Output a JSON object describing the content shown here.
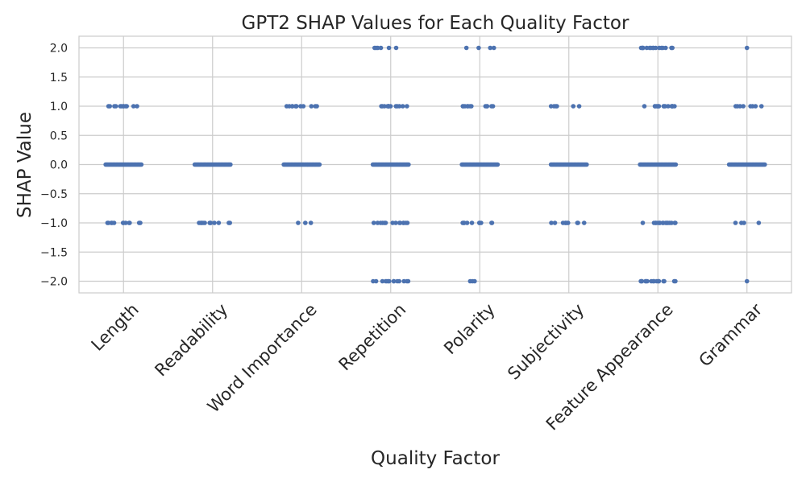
{
  "chart_data": {
    "type": "scatter",
    "title": "GPT2 SHAP Values for Each Quality Factor",
    "xlabel": "Quality Factor",
    "ylabel": "SHAP Value",
    "ylim": [
      -2.2,
      2.2
    ],
    "yticks": [
      2.0,
      1.5,
      1.0,
      0.5,
      0.0,
      -0.5,
      -1.0,
      -1.5,
      -2.0
    ],
    "ytick_labels": [
      "2.0",
      "1.5",
      "1.0",
      "0.5",
      "0.0",
      "−0.5",
      "−1.0",
      "−1.5",
      "−2.0"
    ],
    "grid": true,
    "categories": [
      "Length",
      "Readability",
      "Word Importance",
      "Repetition",
      "Polarity",
      "Subjectivity",
      "Feature Appearance",
      "Grammar"
    ],
    "point_color": "#4c72b0",
    "series": [
      {
        "category": "Length",
        "points": [
          {
            "y": 1.0,
            "count": 12
          },
          {
            "y": 0.0,
            "count": 35
          },
          {
            "y": -1.0,
            "count": 12
          }
        ]
      },
      {
        "category": "Readability",
        "points": [
          {
            "y": 0.0,
            "count": 35
          },
          {
            "y": -1.0,
            "count": 12
          }
        ]
      },
      {
        "category": "Word Importance",
        "points": [
          {
            "y": 1.0,
            "count": 12
          },
          {
            "y": 0.0,
            "count": 35
          },
          {
            "y": -1.0,
            "count": 3
          }
        ]
      },
      {
        "category": "Repetition",
        "points": [
          {
            "y": 2.0,
            "count": 6
          },
          {
            "y": 1.0,
            "count": 14
          },
          {
            "y": 0.0,
            "count": 35
          },
          {
            "y": -1.0,
            "count": 14
          },
          {
            "y": -2.0,
            "count": 14
          }
        ]
      },
      {
        "category": "Polarity",
        "points": [
          {
            "y": 2.0,
            "count": 4
          },
          {
            "y": 1.0,
            "count": 12
          },
          {
            "y": 0.0,
            "count": 35
          },
          {
            "y": -1.0,
            "count": 10
          },
          {
            "y": -2.0,
            "count": 3
          }
        ]
      },
      {
        "category": "Subjectivity",
        "points": [
          {
            "y": 1.0,
            "count": 6
          },
          {
            "y": 0.0,
            "count": 35
          },
          {
            "y": -1.0,
            "count": 10
          }
        ]
      },
      {
        "category": "Feature Appearance",
        "points": [
          {
            "y": 2.0,
            "count": 16
          },
          {
            "y": 1.0,
            "count": 16
          },
          {
            "y": 0.0,
            "count": 35
          },
          {
            "y": -1.0,
            "count": 16
          },
          {
            "y": -2.0,
            "count": 16
          }
        ]
      },
      {
        "category": "Grammar",
        "points": [
          {
            "y": 2.0,
            "count": 1
          },
          {
            "y": 1.0,
            "count": 8
          },
          {
            "y": 0.0,
            "count": 35
          },
          {
            "y": -1.0,
            "count": 4
          },
          {
            "y": -2.0,
            "count": 1
          }
        ]
      }
    ]
  }
}
